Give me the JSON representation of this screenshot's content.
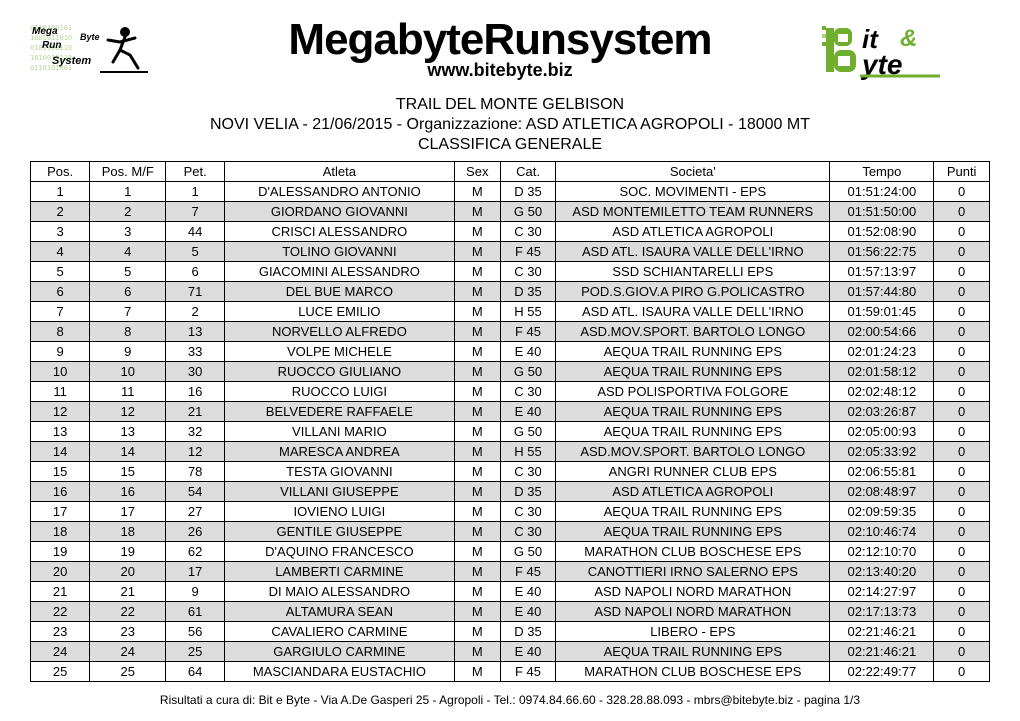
{
  "header": {
    "logo_left_text_top": "Mega",
    "logo_left_text_mid": "Run",
    "logo_left_text_bot": "Byte",
    "logo_left_text_sys": "System",
    "logo_center_main": "MegabyteRunsystem",
    "logo_center_sub": "www.bitebyte.biz",
    "logo_right_top": "it &",
    "logo_right_bot": "yte",
    "logo_right_B": "B"
  },
  "titles": {
    "line1": "TRAIL DEL MONTE GELBISON",
    "line2": "NOVI VELIA - 21/06/2015 - Organizzazione: ASD ATLETICA AGROPOLI  - 18000 MT",
    "line3": "CLASSIFICA GENERALE"
  },
  "table": {
    "columns": [
      "Pos.",
      "Pos. M/F",
      "Pet.",
      "Atleta",
      "Sex",
      "Cat.",
      "Societa'",
      "Tempo",
      "Punti"
    ],
    "col_classes": [
      "col-pos",
      "col-posmf",
      "col-pet",
      "col-atleta",
      "col-sex",
      "col-cat",
      "col-soc",
      "col-tempo",
      "col-punti"
    ],
    "header_bg": "#ffffff",
    "row_even_bg": "#dcdcdc",
    "row_odd_bg": "#ffffff",
    "border_color": "#000000",
    "font_size_pt": 10,
    "rows": [
      [
        "1",
        "1",
        "1",
        "D'ALESSANDRO ANTONIO",
        "M",
        "D 35",
        "SOC. MOVIMENTI - EPS",
        "01:51:24:00",
        "0"
      ],
      [
        "2",
        "2",
        "7",
        "GIORDANO GIOVANNI",
        "M",
        "G 50",
        "ASD MONTEMILETTO TEAM RUNNERS",
        "01:51:50:00",
        "0"
      ],
      [
        "3",
        "3",
        "44",
        "CRISCI ALESSANDRO",
        "M",
        "C 30",
        "ASD ATLETICA AGROPOLI",
        "01:52:08:90",
        "0"
      ],
      [
        "4",
        "4",
        "5",
        "TOLINO GIOVANNI",
        "M",
        "F 45",
        "ASD ATL. ISAURA VALLE DELL'IRNO",
        "01:56:22:75",
        "0"
      ],
      [
        "5",
        "5",
        "6",
        "GIACOMINI ALESSANDRO",
        "M",
        "C 30",
        "SSD SCHIANTARELLI EPS",
        "01:57:13:97",
        "0"
      ],
      [
        "6",
        "6",
        "71",
        "DEL BUE MARCO",
        "M",
        "D 35",
        "POD.S.GIOV.A PIRO G.POLICASTRO",
        "01:57:44:80",
        "0"
      ],
      [
        "7",
        "7",
        "2",
        "LUCE EMILIO",
        "M",
        "H 55",
        "ASD ATL. ISAURA VALLE DELL'IRNO",
        "01:59:01:45",
        "0"
      ],
      [
        "8",
        "8",
        "13",
        "NORVELLO ALFREDO",
        "M",
        "F 45",
        "ASD.MOV.SPORT. BARTOLO LONGO",
        "02:00:54:66",
        "0"
      ],
      [
        "9",
        "9",
        "33",
        "VOLPE MICHELE",
        "M",
        "E 40",
        "AEQUA TRAIL RUNNING EPS",
        "02:01:24:23",
        "0"
      ],
      [
        "10",
        "10",
        "30",
        "RUOCCO GIULIANO",
        "M",
        "G 50",
        "AEQUA TRAIL RUNNING EPS",
        "02:01:58:12",
        "0"
      ],
      [
        "11",
        "11",
        "16",
        "RUOCCO LUIGI",
        "M",
        "C 30",
        "ASD POLISPORTIVA FOLGORE",
        "02:02:48:12",
        "0"
      ],
      [
        "12",
        "12",
        "21",
        "BELVEDERE RAFFAELE",
        "M",
        "E 40",
        "AEQUA TRAIL RUNNING EPS",
        "02:03:26:87",
        "0"
      ],
      [
        "13",
        "13",
        "32",
        "VILLANI MARIO",
        "M",
        "G 50",
        "AEQUA TRAIL RUNNING EPS",
        "02:05:00:93",
        "0"
      ],
      [
        "14",
        "14",
        "12",
        "MARESCA ANDREA",
        "M",
        "H 55",
        "ASD.MOV.SPORT. BARTOLO LONGO",
        "02:05:33:92",
        "0"
      ],
      [
        "15",
        "15",
        "78",
        "TESTA GIOVANNI",
        "M",
        "C 30",
        "ANGRI RUNNER CLUB EPS",
        "02:06:55:81",
        "0"
      ],
      [
        "16",
        "16",
        "54",
        "VILLANI GIUSEPPE",
        "M",
        "D 35",
        "ASD ATLETICA AGROPOLI",
        "02:08:48:97",
        "0"
      ],
      [
        "17",
        "17",
        "27",
        "IOVIENO LUIGI",
        "M",
        "C 30",
        "AEQUA TRAIL RUNNING EPS",
        "02:09:59:35",
        "0"
      ],
      [
        "18",
        "18",
        "26",
        "GENTILE GIUSEPPE",
        "M",
        "C 30",
        "AEQUA TRAIL RUNNING EPS",
        "02:10:46:74",
        "0"
      ],
      [
        "19",
        "19",
        "62",
        "D'AQUINO FRANCESCO",
        "M",
        "G 50",
        "MARATHON CLUB BOSCHESE EPS",
        "02:12:10:70",
        "0"
      ],
      [
        "20",
        "20",
        "17",
        "LAMBERTI CARMINE",
        "M",
        "F 45",
        "CANOTTIERI IRNO SALERNO EPS",
        "02:13:40:20",
        "0"
      ],
      [
        "21",
        "21",
        "9",
        "DI MAIO ALESSANDRO",
        "M",
        "E 40",
        "ASD NAPOLI NORD MARATHON",
        "02:14:27:97",
        "0"
      ],
      [
        "22",
        "22",
        "61",
        "ALTAMURA SEAN",
        "M",
        "E 40",
        "ASD NAPOLI NORD MARATHON",
        "02:17:13:73",
        "0"
      ],
      [
        "23",
        "23",
        "56",
        "CAVALIERO CARMINE",
        "M",
        "D 35",
        "LIBERO - EPS",
        "02:21:46:21",
        "0"
      ],
      [
        "24",
        "24",
        "25",
        "GARGIULO CARMINE",
        "M",
        "E 40",
        "AEQUA TRAIL RUNNING EPS",
        "02:21:46:21",
        "0"
      ],
      [
        "25",
        "25",
        "64",
        "MASCIANDARA EUSTACHIO",
        "M",
        "F 45",
        "MARATHON CLUB BOSCHESE EPS",
        "02:22:49:77",
        "0"
      ]
    ]
  },
  "footer": {
    "text": "Risultati a cura di: Bit e Byte - Via A.De Gasperi 25 - Agropoli - Tel.: 0974.84.66.60 - 328.28.88.093 - mbrs@bitebyte.biz - pagina 1/3"
  },
  "colors": {
    "green": "#6fae2e",
    "black": "#000000",
    "grey_row": "#dcdcdc",
    "white": "#ffffff"
  }
}
